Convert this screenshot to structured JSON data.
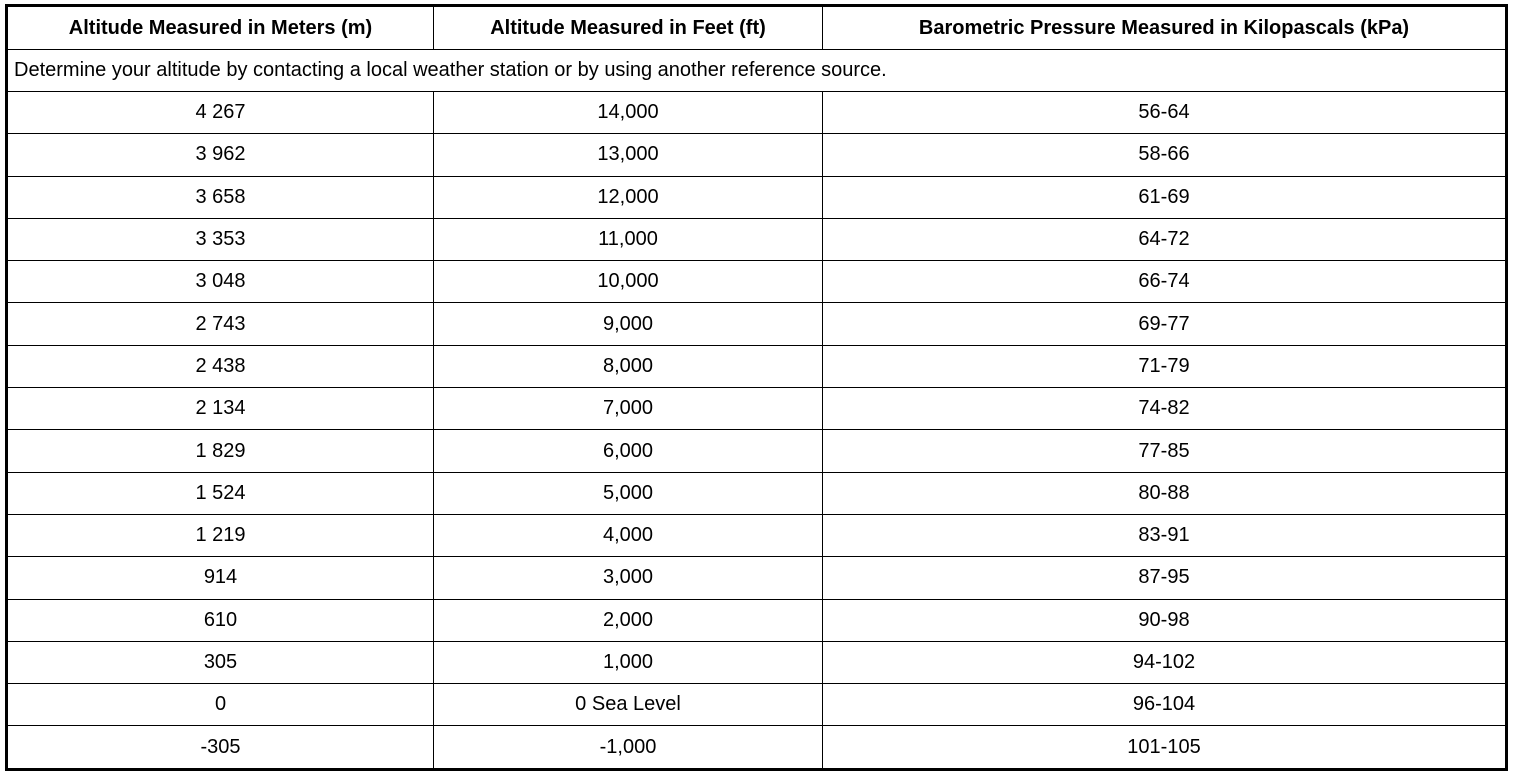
{
  "table": {
    "headers": [
      "Altitude Measured in Meters (m)",
      "Altitude Measured in Feet (ft)",
      "Barometric Pressure Measured in Kilopascals (kPa)"
    ],
    "note": "Determine your altitude by contacting a local weather station or by using another reference source.",
    "rows": [
      [
        "4 267",
        "14,000",
        "56-64"
      ],
      [
        "3 962",
        "13,000",
        "58-66"
      ],
      [
        "3 658",
        "12,000",
        "61-69"
      ],
      [
        "3 353",
        "11,000",
        "64-72"
      ],
      [
        "3 048",
        "10,000",
        "66-74"
      ],
      [
        "2 743",
        "9,000",
        "69-77"
      ],
      [
        "2 438",
        "8,000",
        "71-79"
      ],
      [
        "2 134",
        "7,000",
        "74-82"
      ],
      [
        "1 829",
        "6,000",
        "77-85"
      ],
      [
        "1 524",
        "5,000",
        "80-88"
      ],
      [
        "1 219",
        "4,000",
        "83-91"
      ],
      [
        "914",
        "3,000",
        "87-95"
      ],
      [
        "610",
        "2,000",
        "90-98"
      ],
      [
        "305",
        "1,000",
        "94-102"
      ],
      [
        "0",
        "0 Sea Level",
        "96-104"
      ],
      [
        "-305",
        "-1,000",
        "101-105"
      ]
    ]
  }
}
